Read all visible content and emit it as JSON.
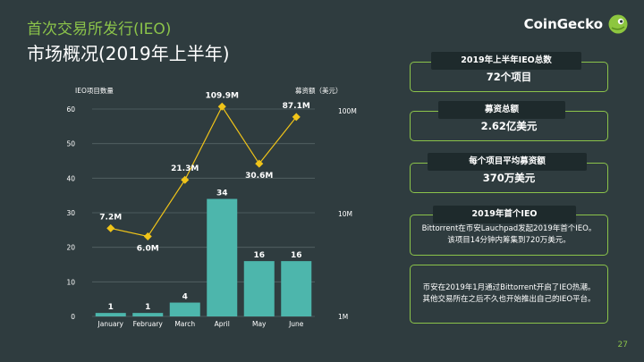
{
  "header": {
    "title": "首次交易所发行(IEO)",
    "subtitle": "市场概况(2019年上半年)"
  },
  "logo": {
    "text": "CoinGecko",
    "icon": "gecko-icon"
  },
  "chart_data": {
    "type": "bar",
    "categories": [
      "January",
      "February",
      "March",
      "April",
      "May",
      "June"
    ],
    "series": [
      {
        "name": "IEO项目数量",
        "type": "bar",
        "values": [
          1,
          1,
          4,
          34,
          16,
          16
        ],
        "labels": [
          "1",
          "1",
          "4",
          "34",
          "16",
          "16"
        ],
        "color": "#4db6ac"
      },
      {
        "name": "募资额（美元）",
        "type": "line",
        "values": [
          7.2,
          6.0,
          21.3,
          109.9,
          30.6,
          87.1
        ],
        "labels": [
          "7.2M",
          "6.0M",
          "21.3M",
          "109.9M",
          "30.6M",
          "87.1M"
        ],
        "unit": "M",
        "color": "#f0c419"
      }
    ],
    "left_axis": {
      "label": "IEO项目数量",
      "ticks": [
        0,
        10,
        20,
        30,
        40,
        50,
        60
      ],
      "ylim": [
        0,
        60
      ]
    },
    "right_axis": {
      "label": "募资额（美元）",
      "scale": "log",
      "ticks": [
        "1M",
        "10M",
        "100M"
      ],
      "tick_values": [
        1,
        10,
        100
      ],
      "ylim": [
        1,
        100
      ]
    },
    "grid": true
  },
  "stats": [
    {
      "label": "2019年上半年IEO总数",
      "value": "72个项目"
    },
    {
      "label": "募资总额",
      "value": "2.62亿美元"
    },
    {
      "label": "每个项目平均募资额",
      "value": "370万美元"
    }
  ],
  "first_ieo": {
    "label": "2019年首个IEO",
    "text": "Bittorrent在币安Lauchpad发起2019年首个IEO。该项目14分钟内筹集到720万美元。"
  },
  "note": {
    "text": "币安在2019年1月通过Bittorrent开启了IEO热潮。其他交易所在之后不久也开始推出自己的IEO平台。"
  },
  "page_number": "27",
  "colors": {
    "background": "#2f3c3f",
    "accent": "#8bc34a",
    "bar": "#4db6ac",
    "line": "#f0c419",
    "tag": "#1e2a2c"
  }
}
